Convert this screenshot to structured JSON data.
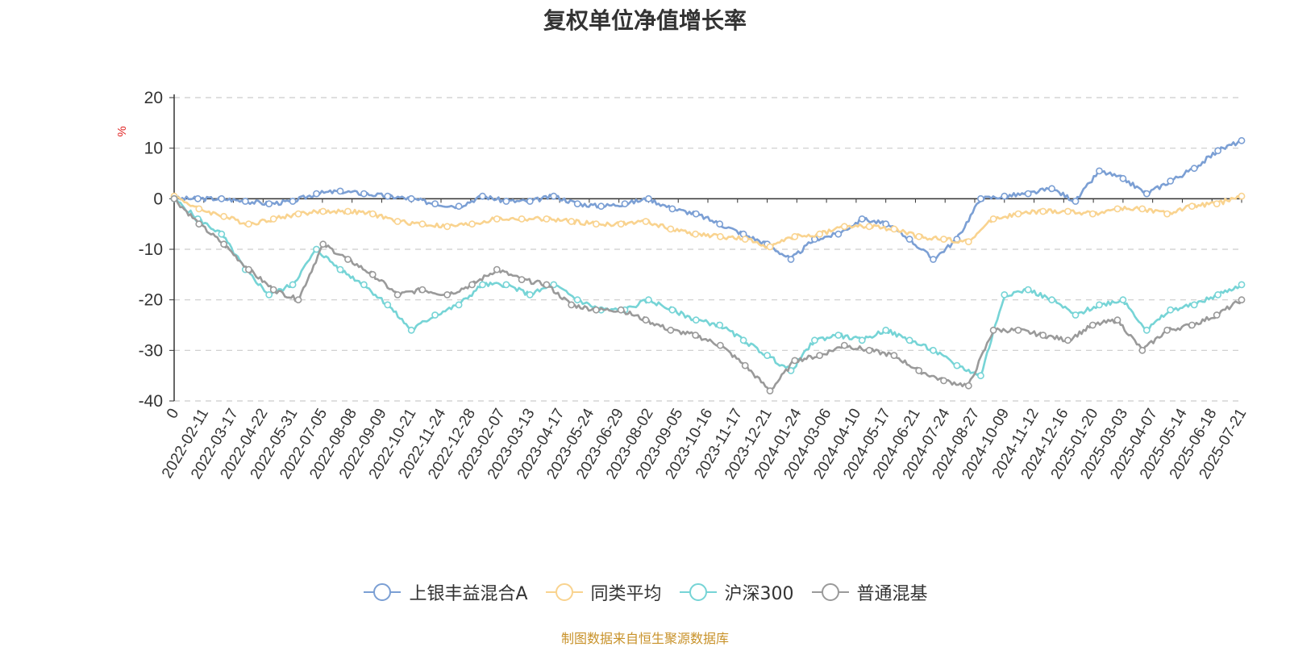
{
  "chart_data": {
    "type": "line",
    "title": "复权单位净值增长率",
    "ylabel": "%",
    "ylim": [
      -40,
      20
    ],
    "yticks": [
      20,
      10,
      0,
      -10,
      -20,
      -30,
      -40
    ],
    "x_tick_labels": [
      "0",
      "2022-02-11",
      "2022-03-17",
      "2022-04-22",
      "2022-05-31",
      "2022-07-05",
      "2022-08-08",
      "2022-09-09",
      "2022-10-21",
      "2022-11-24",
      "2022-12-28",
      "2023-02-07",
      "2023-03-13",
      "2023-04-17",
      "2023-05-24",
      "2023-06-29",
      "2023-08-02",
      "2023-09-05",
      "2023-10-16",
      "2023-11-17",
      "2023-12-21",
      "2024-01-24",
      "2024-03-06",
      "2024-04-10",
      "2024-05-17",
      "2024-06-21",
      "2024-07-24",
      "2024-08-27",
      "2024-10-09",
      "2024-11-12",
      "2024-12-16",
      "2025-01-20",
      "2025-03-03",
      "2025-04-07",
      "2025-05-14",
      "2025-06-18",
      "2025-07-21"
    ],
    "grid": "horizontal dashed",
    "legend_position": "bottom",
    "series": [
      {
        "name": "上银丰益混合A",
        "color": "#7b9fd4",
        "values": [
          0,
          0,
          0,
          -0.5,
          -1,
          -0.5,
          1,
          1.5,
          1,
          0.5,
          0,
          -1,
          -1.5,
          0.5,
          -0.5,
          -0.5,
          0.5,
          -1,
          -1.5,
          -1,
          0,
          -2,
          -3,
          -5,
          -7,
          -9,
          -12,
          -8,
          -7,
          -4,
          -5,
          -8,
          -12,
          -8,
          0,
          0.5,
          1,
          2,
          -0.5,
          5.5,
          4,
          1,
          3.5,
          6,
          9.5,
          11.5
        ]
      },
      {
        "name": "同类平均",
        "color": "#f9d38f",
        "values": [
          0.5,
          -2,
          -3.5,
          -5,
          -4,
          -3,
          -2.5,
          -2.5,
          -3,
          -4.5,
          -5,
          -5.5,
          -5,
          -4,
          -4,
          -4,
          -4.5,
          -5,
          -5,
          -4.5,
          -6,
          -7,
          -7.5,
          -8,
          -9.5,
          -7.5,
          -7,
          -5.5,
          -5.5,
          -6,
          -7.5,
          -8,
          -8.5,
          -4,
          -3,
          -2.5,
          -2.5,
          -3,
          -2,
          -2,
          -3,
          -1.5,
          -1,
          0.5
        ]
      },
      {
        "name": "沪深300",
        "color": "#76d4d6",
        "values": [
          0,
          -4,
          -7,
          -14,
          -19,
          -17,
          -10,
          -14,
          -17,
          -21,
          -26,
          -23,
          -21,
          -17,
          -17,
          -19,
          -17,
          -20,
          -22,
          -22,
          -20,
          -22,
          -24,
          -25,
          -28,
          -31,
          -34,
          -28,
          -27,
          -28,
          -26,
          -28,
          -30,
          -33,
          -35,
          -19,
          -18,
          -20,
          -23,
          -21,
          -20,
          -26,
          -22,
          -21,
          -19,
          -17
        ]
      },
      {
        "name": "普通混基",
        "color": "#9a9a9a",
        "values": [
          0,
          -5,
          -9,
          -14,
          -18,
          -20,
          -9,
          -12,
          -15,
          -19,
          -18,
          -19,
          -17,
          -14,
          -16,
          -17,
          -21,
          -22,
          -22,
          -24,
          -26,
          -27,
          -29,
          -33,
          -38,
          -32,
          -31,
          -29,
          -30,
          -31,
          -34,
          -36,
          -37,
          -26,
          -26,
          -27,
          -28,
          -25,
          -24,
          -30,
          -26,
          -25,
          -23,
          -20
        ]
      }
    ]
  },
  "legend": [
    {
      "label": "上银丰益混合A",
      "color": "#7b9fd4"
    },
    {
      "label": "同类平均",
      "color": "#f9d38f"
    },
    {
      "label": "沪深300",
      "color": "#76d4d6"
    },
    {
      "label": "普通混基",
      "color": "#9a9a9a"
    }
  ],
  "source_note": "制图数据来自恒生聚源数据库"
}
